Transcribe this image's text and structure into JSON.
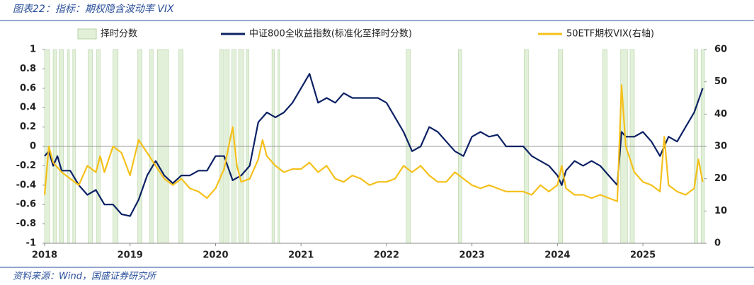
{
  "chart_data": {
    "type": "line",
    "title": "图表22：指标：期权隐含波动率 VIX",
    "source": "资料来源：Wind，国盛证券研究所",
    "xlim": [
      2018,
      2025.72
    ],
    "xticks": [
      2018,
      2019,
      2020,
      2021,
      2022,
      2023,
      2024,
      2025
    ],
    "ylim": [
      -1,
      1
    ],
    "yticks": [
      1,
      0.8,
      0.6,
      0.4,
      0.2,
      0,
      -0.2,
      -0.4,
      -0.6,
      -0.8,
      -1
    ],
    "y2lim": [
      0,
      60
    ],
    "y2ticks": [
      60,
      50,
      40,
      30,
      20,
      10,
      0
    ],
    "series": [
      {
        "name": "择时分数",
        "color": "#e2f0d9",
        "kind": "band",
        "x": [
          2018.0,
          2018.1,
          2018.17,
          2018.27,
          2018.33,
          2018.51,
          2018.61,
          2018.8,
          2019.09,
          2019.23,
          2019.32,
          2019.57,
          2020.05,
          2020.11,
          2020.19,
          2020.27,
          2020.36,
          2020.66,
          2020.73,
          2022.23,
          2022.84,
          2023.61,
          2024.01,
          2024.53,
          2024.74,
          2024.85,
          2025.6,
          2025.68
        ],
        "x_end": [
          2018.06,
          2018.14,
          2018.22,
          2018.29,
          2018.36,
          2018.56,
          2018.65,
          2018.86,
          2019.14,
          2019.27,
          2019.45,
          2019.62,
          2020.09,
          2020.16,
          2020.24,
          2020.33,
          2020.39,
          2020.69,
          2020.75,
          2022.28,
          2022.88,
          2023.66,
          2024.06,
          2024.58,
          2024.82,
          2024.9,
          2025.64,
          2025.72
        ]
      },
      {
        "name": "中证800全收益指数(标准化至择时分数)",
        "color": "#0c2164",
        "x": [
          2018.0,
          2018.05,
          2018.1,
          2018.15,
          2018.2,
          2018.3,
          2018.4,
          2018.5,
          2018.6,
          2018.7,
          2018.8,
          2018.9,
          2019.0,
          2019.1,
          2019.2,
          2019.3,
          2019.4,
          2019.5,
          2019.6,
          2019.7,
          2019.8,
          2019.9,
          2020.0,
          2020.1,
          2020.2,
          2020.3,
          2020.4,
          2020.5,
          2020.6,
          2020.7,
          2020.8,
          2020.9,
          2021.0,
          2021.1,
          2021.15,
          2021.2,
          2021.3,
          2021.4,
          2021.5,
          2021.6,
          2021.7,
          2021.8,
          2021.9,
          2022.0,
          2022.1,
          2022.2,
          2022.3,
          2022.4,
          2022.5,
          2022.6,
          2022.7,
          2022.8,
          2022.9,
          2023.0,
          2023.1,
          2023.2,
          2023.3,
          2023.4,
          2023.5,
          2023.6,
          2023.7,
          2023.8,
          2023.9,
          2024.0,
          2024.05,
          2024.1,
          2024.2,
          2024.3,
          2024.4,
          2024.5,
          2024.6,
          2024.7,
          2024.75,
          2024.8,
          2024.9,
          2025.0,
          2025.1,
          2025.2,
          2025.3,
          2025.4,
          2025.5,
          2025.6,
          2025.7
        ],
        "values": [
          -0.1,
          -0.05,
          -0.2,
          -0.1,
          -0.25,
          -0.25,
          -0.4,
          -0.5,
          -0.45,
          -0.6,
          -0.6,
          -0.7,
          -0.72,
          -0.55,
          -0.3,
          -0.15,
          -0.3,
          -0.38,
          -0.3,
          -0.3,
          -0.25,
          -0.25,
          -0.1,
          -0.1,
          -0.35,
          -0.3,
          -0.2,
          0.25,
          0.35,
          0.3,
          0.35,
          0.45,
          0.6,
          0.75,
          0.6,
          0.45,
          0.5,
          0.45,
          0.55,
          0.5,
          0.5,
          0.5,
          0.5,
          0.45,
          0.3,
          0.15,
          -0.05,
          0.0,
          0.2,
          0.15,
          0.05,
          -0.05,
          -0.1,
          0.1,
          0.15,
          0.1,
          0.12,
          0.0,
          0.0,
          0.0,
          -0.1,
          -0.15,
          -0.2,
          -0.3,
          -0.4,
          -0.25,
          -0.15,
          -0.2,
          -0.15,
          -0.2,
          -0.3,
          -0.4,
          0.15,
          0.1,
          0.1,
          0.15,
          0.05,
          -0.1,
          0.1,
          0.05,
          0.2,
          0.35,
          0.6
        ]
      },
      {
        "name": "50ETF期权VIX(右轴)",
        "color": "#f5c01a",
        "axis": "y2",
        "x": [
          2018.0,
          2018.05,
          2018.1,
          2018.2,
          2018.3,
          2018.4,
          2018.5,
          2018.6,
          2018.65,
          2018.7,
          2018.8,
          2018.9,
          2019.0,
          2019.1,
          2019.2,
          2019.3,
          2019.4,
          2019.5,
          2019.6,
          2019.7,
          2019.8,
          2019.9,
          2020.0,
          2020.1,
          2020.2,
          2020.25,
          2020.3,
          2020.4,
          2020.5,
          2020.55,
          2020.6,
          2020.7,
          2020.8,
          2020.9,
          2021.0,
          2021.1,
          2021.2,
          2021.3,
          2021.4,
          2021.5,
          2021.6,
          2021.7,
          2021.8,
          2021.9,
          2022.0,
          2022.1,
          2022.2,
          2022.3,
          2022.4,
          2022.5,
          2022.6,
          2022.7,
          2022.8,
          2022.9,
          2023.0,
          2023.1,
          2023.2,
          2023.3,
          2023.4,
          2023.5,
          2023.6,
          2023.7,
          2023.8,
          2023.9,
          2024.0,
          2024.05,
          2024.1,
          2024.2,
          2024.3,
          2024.4,
          2024.5,
          2024.6,
          2024.7,
          2024.75,
          2024.8,
          2024.9,
          2025.0,
          2025.1,
          2025.2,
          2025.25,
          2025.3,
          2025.4,
          2025.5,
          2025.6,
          2025.65,
          2025.7
        ],
        "values": [
          15,
          30,
          25,
          22,
          20,
          18,
          24,
          22,
          27,
          22,
          30,
          28,
          21,
          32,
          28,
          24,
          20,
          18,
          20,
          17,
          16,
          14,
          17,
          23,
          36,
          24,
          19,
          20,
          26,
          32,
          27,
          24,
          22,
          23,
          23,
          25,
          22,
          24,
          20,
          19,
          21,
          20,
          18,
          19,
          19,
          20,
          24,
          22,
          24,
          21,
          19,
          19,
          22,
          20,
          18,
          17,
          18,
          17,
          16,
          16,
          16,
          15,
          18,
          16,
          18,
          24,
          17,
          15,
          15,
          14,
          15,
          14,
          13,
          49,
          30,
          22,
          19,
          18,
          16,
          33,
          18,
          16,
          15,
          17,
          26,
          19
        ]
      }
    ]
  }
}
